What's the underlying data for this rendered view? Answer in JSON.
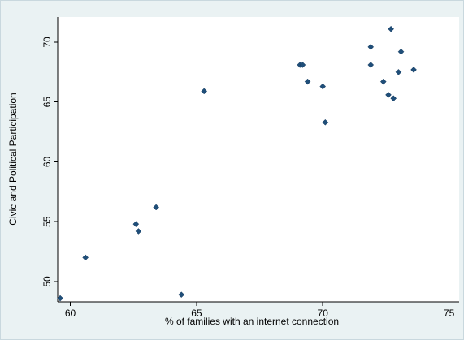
{
  "chart_data": {
    "type": "scatter",
    "title": "",
    "xlabel": "% of families with an internet connection",
    "ylabel": "Civic and Political Participation",
    "xlim": [
      59.5,
      75.4
    ],
    "ylim": [
      48.3,
      72.1
    ],
    "xticks": [
      60,
      65,
      70,
      75
    ],
    "yticks": [
      50,
      55,
      60,
      65,
      70
    ],
    "grid": false,
    "legend": "none",
    "colors": {
      "point": "#1f4e79",
      "plot_background": "#ffffff",
      "frame_background": "#eaf2f3"
    },
    "points": [
      {
        "x": 59.6,
        "y": 48.6
      },
      {
        "x": 60.6,
        "y": 52.0
      },
      {
        "x": 62.6,
        "y": 54.8
      },
      {
        "x": 62.7,
        "y": 54.2
      },
      {
        "x": 63.4,
        "y": 56.2
      },
      {
        "x": 64.4,
        "y": 48.9
      },
      {
        "x": 65.3,
        "y": 65.9
      },
      {
        "x": 69.1,
        "y": 68.1
      },
      {
        "x": 69.2,
        "y": 68.1
      },
      {
        "x": 69.4,
        "y": 66.7
      },
      {
        "x": 70.0,
        "y": 66.3
      },
      {
        "x": 70.1,
        "y": 63.3
      },
      {
        "x": 71.9,
        "y": 69.6
      },
      {
        "x": 71.9,
        "y": 68.1
      },
      {
        "x": 72.4,
        "y": 66.7
      },
      {
        "x": 72.6,
        "y": 65.6
      },
      {
        "x": 72.7,
        "y": 71.1
      },
      {
        "x": 72.8,
        "y": 65.3
      },
      {
        "x": 73.0,
        "y": 67.5
      },
      {
        "x": 73.1,
        "y": 69.2
      },
      {
        "x": 73.6,
        "y": 67.7
      }
    ]
  }
}
